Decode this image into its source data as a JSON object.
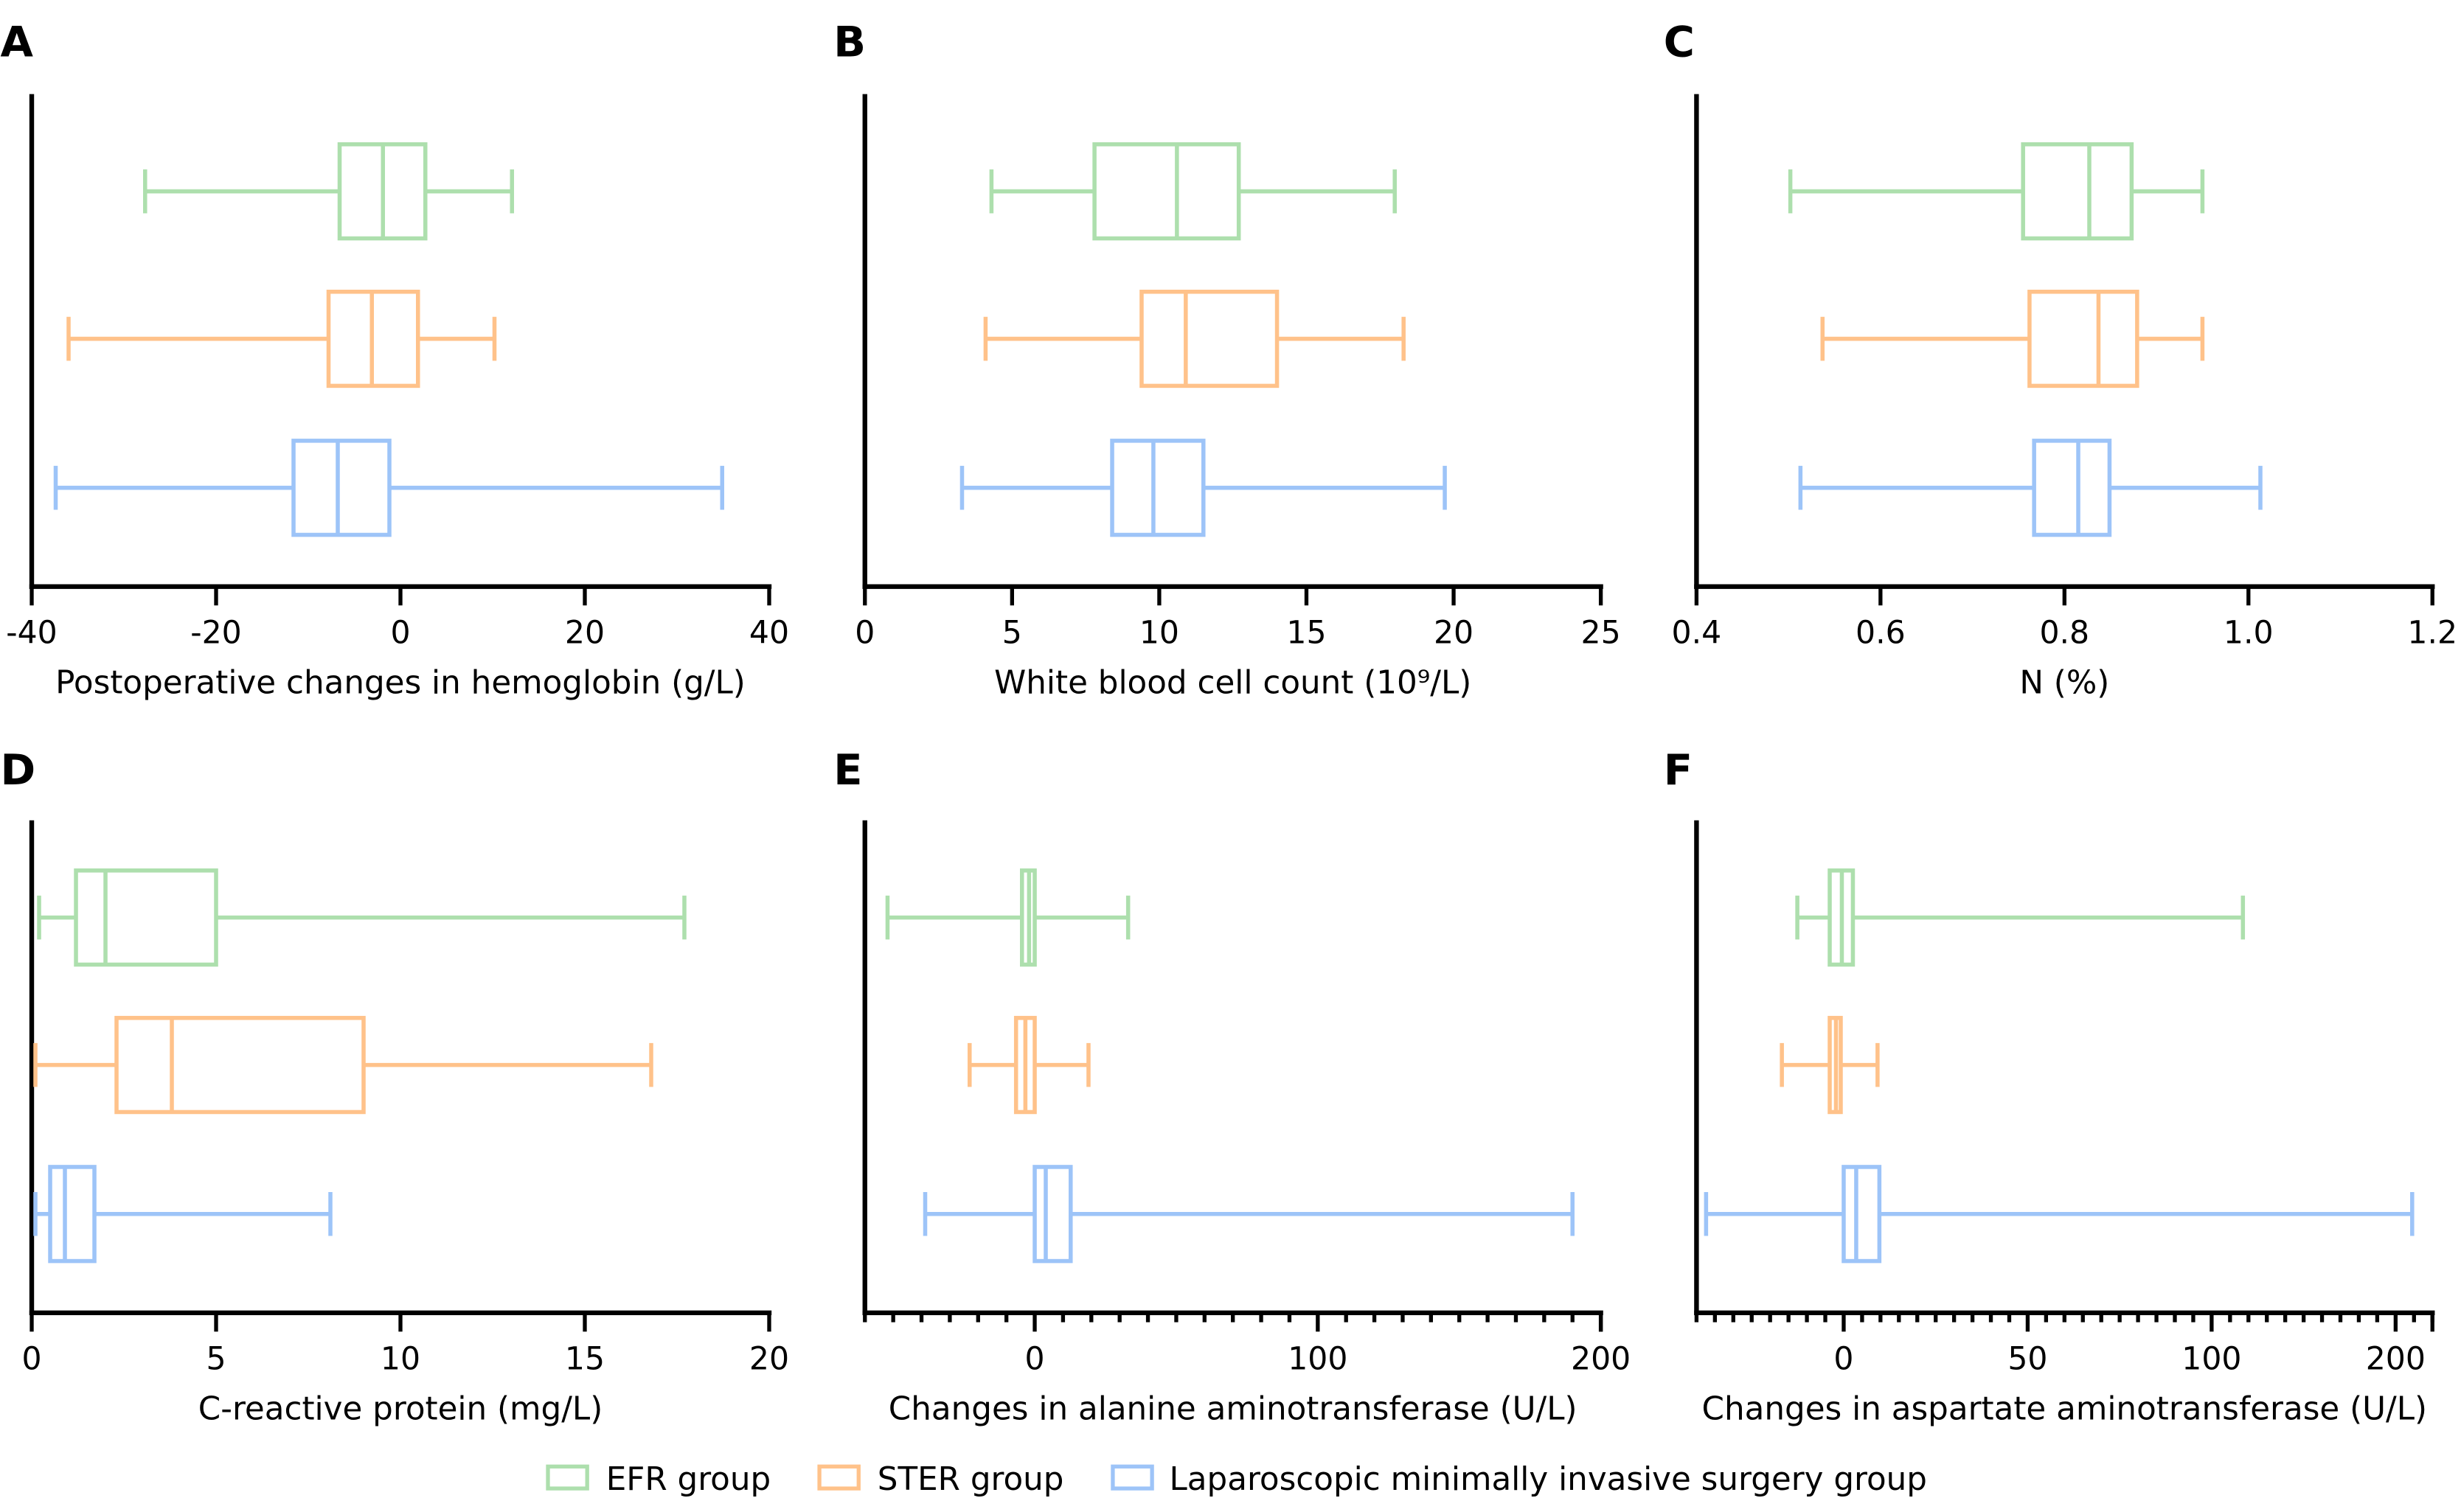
{
  "colors": {
    "EFR": "#addfad",
    "STER": "#ffc28a",
    "LAP": "#9dc4f8",
    "axis": "#000000"
  },
  "legend": [
    {
      "key": "EFR",
      "label": "EFR group"
    },
    {
      "key": "STER",
      "label": "STER group"
    },
    {
      "key": "LAP",
      "label": "Laparoscopic minimally invasive surgery group"
    }
  ],
  "legend_placement": "bottom-center",
  "chart_data": [
    {
      "type": "box",
      "orientation": "horizontal",
      "panel": "A",
      "xlabel": "Postoperative changes in hemoglobin (g/L)",
      "xlim": [
        -40,
        40
      ],
      "ticks": [
        -40,
        -20,
        0,
        20,
        40
      ],
      "tick_labels": [
        "-40",
        "-20",
        "0",
        "20",
        "40"
      ],
      "minor_step": null,
      "groups": [
        {
          "key": "EFR",
          "min": -27.7,
          "q1": -6.6,
          "median": -1.9,
          "q3": 2.7,
          "max": 12.1
        },
        {
          "key": "STER",
          "min": -36,
          "q1": -7.8,
          "median": -3.1,
          "q3": 1.9,
          "max": 10.2
        },
        {
          "key": "LAP",
          "min": -37.4,
          "q1": -11.6,
          "median": -6.8,
          "q3": -1.2,
          "max": 34.9
        }
      ]
    },
    {
      "type": "box",
      "orientation": "horizontal",
      "panel": "B",
      "xlabel": "White blood cell count (10⁹/L)",
      "xlim": [
        0,
        25
      ],
      "ticks": [
        0,
        5,
        10,
        15,
        20,
        25
      ],
      "tick_labels": [
        "0",
        "5",
        "10",
        "15",
        "20",
        "25"
      ],
      "minor_step": null,
      "groups": [
        {
          "key": "EFR",
          "min": 4.3,
          "q1": 7.8,
          "median": 10.6,
          "q3": 12.7,
          "max": 18.0
        },
        {
          "key": "STER",
          "min": 4.1,
          "q1": 9.4,
          "median": 10.9,
          "q3": 14.0,
          "max": 18.3
        },
        {
          "key": "LAP",
          "min": 3.3,
          "q1": 8.4,
          "median": 9.8,
          "q3": 11.5,
          "max": 19.7
        }
      ]
    },
    {
      "type": "box",
      "orientation": "horizontal",
      "panel": "C",
      "xlabel": "N (%)",
      "xlim": [
        0.4,
        1.2
      ],
      "ticks": [
        0.4,
        0.6,
        0.8,
        1.0,
        1.2
      ],
      "tick_labels": [
        "0.4",
        "0.6",
        "0.8",
        "1.0",
        "1.2"
      ],
      "minor_step": null,
      "groups": [
        {
          "key": "EFR",
          "min": 0.502,
          "q1": 0.755,
          "median": 0.827,
          "q3": 0.873,
          "max": 0.95
        },
        {
          "key": "STER",
          "min": 0.537,
          "q1": 0.762,
          "median": 0.837,
          "q3": 0.879,
          "max": 0.95
        },
        {
          "key": "LAP",
          "min": 0.513,
          "q1": 0.767,
          "median": 0.815,
          "q3": 0.849,
          "max": 1.013
        }
      ]
    },
    {
      "type": "box",
      "orientation": "horizontal",
      "panel": "D",
      "xlabel": "C-reactive protein (mg/L)",
      "xlim": [
        0,
        20
      ],
      "ticks": [
        0,
        5,
        10,
        15,
        20
      ],
      "tick_labels": [
        "0",
        "5",
        "10",
        "15",
        "20"
      ],
      "minor_step": null,
      "groups": [
        {
          "key": "EFR",
          "min": 0.2,
          "q1": 1.2,
          "median": 2.0,
          "q3": 5.0,
          "max": 17.7
        },
        {
          "key": "STER",
          "min": 0.1,
          "q1": 2.3,
          "median": 3.8,
          "q3": 9.0,
          "max": 16.8
        },
        {
          "key": "LAP",
          "min": 0.1,
          "q1": 0.5,
          "median": 0.9,
          "q3": 1.7,
          "max": 8.1
        }
      ]
    },
    {
      "type": "box",
      "orientation": "horizontal",
      "panel": "E",
      "xlabel": "Changes in alanine aminotransferase (U/L)",
      "xlim": [
        -60,
        200
      ],
      "ticks": [
        0,
        100,
        200
      ],
      "tick_labels": [
        "0",
        "100",
        "200"
      ],
      "minor_step": 10,
      "groups": [
        {
          "key": "EFR",
          "min": -52,
          "q1": -4.5,
          "median": -2,
          "q3": 0,
          "max": 33
        },
        {
          "key": "STER",
          "min": -23,
          "q1": -6.6,
          "median": -3.3,
          "q3": 0,
          "max": 19
        },
        {
          "key": "LAP",
          "min": -38.7,
          "q1": 0,
          "median": 3.9,
          "q3": 12.7,
          "max": 190
        }
      ]
    },
    {
      "type": "box",
      "orientation": "horizontal",
      "panel": "F",
      "xlabel": "Changes in aspartate aminotransferase (U/L)",
      "xlim": [
        -40,
        220
      ],
      "ticks": [
        0,
        50,
        100,
        200
      ],
      "tick_labels": [
        "0",
        "50",
        "100",
        "200"
      ],
      "minor_step": 5,
      "axis_break_after": 100,
      "minor_step_after_break": 10,
      "groups": [
        {
          "key": "EFR",
          "min": -12.6,
          "q1": -3.8,
          "median": -0.5,
          "q3": 2.5,
          "max": 117
        },
        {
          "key": "STER",
          "min": -16.8,
          "q1": -3.8,
          "median": -2.1,
          "q3": -0.8,
          "max": 9.2
        },
        {
          "key": "LAP",
          "min": -37.4,
          "q1": 0,
          "median": 3.4,
          "q3": 9.7,
          "max": 209
        }
      ]
    }
  ]
}
